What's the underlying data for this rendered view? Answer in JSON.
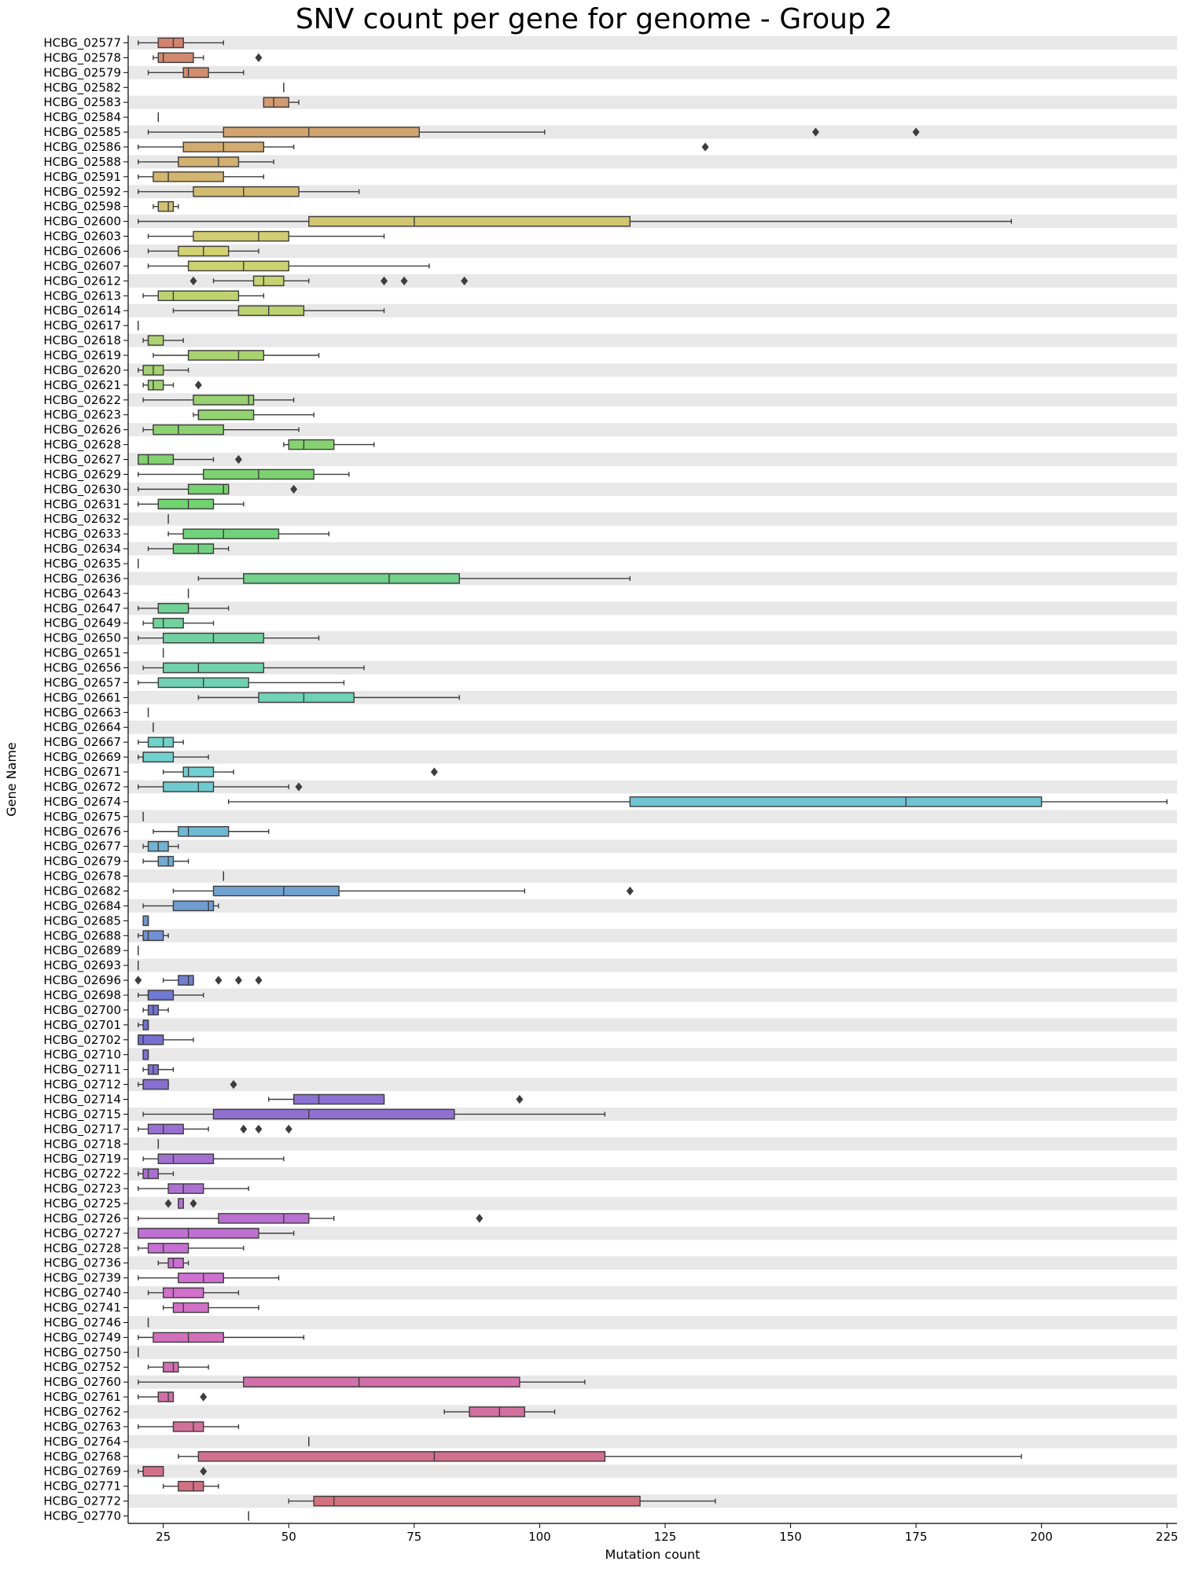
{
  "chart_data": {
    "type": "box",
    "orientation": "horizontal",
    "title": "SNV count per gene for genome - Group 2",
    "xlabel": "Mutation count",
    "ylabel": "Gene Name",
    "xlim": [
      18,
      227
    ],
    "xticks": [
      25,
      50,
      75,
      100,
      125,
      150,
      175,
      200,
      225
    ],
    "row_banding": true,
    "categories": [
      "HCBG_02577",
      "HCBG_02578",
      "HCBG_02579",
      "HCBG_02582",
      "HCBG_02583",
      "HCBG_02584",
      "HCBG_02585",
      "HCBG_02586",
      "HCBG_02588",
      "HCBG_02591",
      "HCBG_02592",
      "HCBG_02598",
      "HCBG_02600",
      "HCBG_02603",
      "HCBG_02606",
      "HCBG_02607",
      "HCBG_02612",
      "HCBG_02613",
      "HCBG_02614",
      "HCBG_02617",
      "HCBG_02618",
      "HCBG_02619",
      "HCBG_02620",
      "HCBG_02621",
      "HCBG_02622",
      "HCBG_02623",
      "HCBG_02626",
      "HCBG_02628",
      "HCBG_02627",
      "HCBG_02629",
      "HCBG_02630",
      "HCBG_02631",
      "HCBG_02632",
      "HCBG_02633",
      "HCBG_02634",
      "HCBG_02635",
      "HCBG_02636",
      "HCBG_02643",
      "HCBG_02647",
      "HCBG_02649",
      "HCBG_02650",
      "HCBG_02651",
      "HCBG_02656",
      "HCBG_02657",
      "HCBG_02661",
      "HCBG_02663",
      "HCBG_02664",
      "HCBG_02667",
      "HCBG_02669",
      "HCBG_02671",
      "HCBG_02672",
      "HCBG_02674",
      "HCBG_02675",
      "HCBG_02676",
      "HCBG_02677",
      "HCBG_02679",
      "HCBG_02678",
      "HCBG_02682",
      "HCBG_02684",
      "HCBG_02685",
      "HCBG_02688",
      "HCBG_02689",
      "HCBG_02693",
      "HCBG_02696",
      "HCBG_02698",
      "HCBG_02700",
      "HCBG_02701",
      "HCBG_02702",
      "HCBG_02710",
      "HCBG_02711",
      "HCBG_02712",
      "HCBG_02714",
      "HCBG_02715",
      "HCBG_02717",
      "HCBG_02718",
      "HCBG_02719",
      "HCBG_02722",
      "HCBG_02723",
      "HCBG_02725",
      "HCBG_02726",
      "HCBG_02727",
      "HCBG_02728",
      "HCBG_02736",
      "HCBG_02739",
      "HCBG_02740",
      "HCBG_02741",
      "HCBG_02746",
      "HCBG_02749",
      "HCBG_02750",
      "HCBG_02752",
      "HCBG_02760",
      "HCBG_02761",
      "HCBG_02762",
      "HCBG_02763",
      "HCBG_02764",
      "HCBG_02768",
      "HCBG_02769",
      "HCBG_02771",
      "HCBG_02772",
      "HCBG_02770"
    ],
    "boxes": [
      [
        20,
        24,
        27,
        29,
        37,
        []
      ],
      [
        23,
        24,
        25,
        31,
        33,
        [
          44
        ]
      ],
      [
        22,
        29,
        30,
        34,
        41,
        []
      ],
      [
        49,
        49,
        49,
        49,
        49,
        []
      ],
      [
        45,
        45,
        47,
        50,
        52,
        []
      ],
      [
        24,
        24,
        24,
        24,
        24,
        []
      ],
      [
        22,
        37,
        54,
        76,
        101,
        [
          155,
          175
        ]
      ],
      [
        20,
        29,
        37,
        45,
        51,
        [
          133
        ]
      ],
      [
        20,
        28,
        36,
        40,
        47,
        []
      ],
      [
        20,
        23,
        26,
        37,
        45,
        []
      ],
      [
        20,
        31,
        41,
        52,
        64,
        []
      ],
      [
        23,
        24,
        26,
        27,
        28,
        []
      ],
      [
        20,
        54,
        75,
        118,
        194,
        []
      ],
      [
        22,
        31,
        44,
        50,
        69,
        []
      ],
      [
        22,
        28,
        33,
        38,
        44,
        []
      ],
      [
        22,
        30,
        41,
        50,
        78,
        []
      ],
      [
        35,
        43,
        45,
        49,
        54,
        [
          31,
          69,
          73,
          85
        ]
      ],
      [
        21,
        24,
        27,
        40,
        45,
        []
      ],
      [
        27,
        40,
        46,
        53,
        69,
        []
      ],
      [
        20,
        20,
        20,
        20,
        20,
        []
      ],
      [
        21,
        22,
        22,
        25,
        29,
        []
      ],
      [
        23,
        30,
        40,
        45,
        56,
        []
      ],
      [
        20,
        21,
        23,
        25,
        30,
        []
      ],
      [
        21,
        22,
        23,
        25,
        27,
        [
          32
        ]
      ],
      [
        21,
        31,
        42,
        43,
        51,
        []
      ],
      [
        31,
        32,
        32,
        43,
        55,
        []
      ],
      [
        21,
        23,
        28,
        37,
        52,
        []
      ],
      [
        49,
        50,
        53,
        59,
        67,
        []
      ],
      [
        20,
        20,
        22,
        27,
        35,
        [
          40
        ]
      ],
      [
        20,
        33,
        44,
        55,
        62,
        []
      ],
      [
        20,
        30,
        37,
        38,
        38,
        [
          51
        ]
      ],
      [
        20,
        24,
        30,
        35,
        41,
        []
      ],
      [
        26,
        26,
        26,
        26,
        26,
        []
      ],
      [
        26,
        29,
        37,
        48,
        58,
        []
      ],
      [
        22,
        27,
        32,
        35,
        38,
        []
      ],
      [
        20,
        20,
        20,
        20,
        20,
        []
      ],
      [
        32,
        41,
        70,
        84,
        118,
        []
      ],
      [
        30,
        30,
        30,
        30,
        30,
        []
      ],
      [
        20,
        24,
        30,
        30,
        38,
        []
      ],
      [
        21,
        23,
        25,
        29,
        35,
        []
      ],
      [
        20,
        25,
        35,
        45,
        56,
        []
      ],
      [
        25,
        25,
        25,
        25,
        25,
        []
      ],
      [
        21,
        25,
        32,
        45,
        65,
        []
      ],
      [
        20,
        24,
        33,
        42,
        61,
        []
      ],
      [
        32,
        44,
        53,
        63,
        84,
        []
      ],
      [
        22,
        22,
        22,
        22,
        22,
        []
      ],
      [
        23,
        23,
        23,
        23,
        23,
        []
      ],
      [
        20,
        22,
        25,
        27,
        29,
        []
      ],
      [
        20,
        21,
        21,
        27,
        34,
        []
      ],
      [
        25,
        29,
        30,
        35,
        39,
        [
          79
        ]
      ],
      [
        20,
        25,
        32,
        35,
        50,
        [
          52
        ]
      ],
      [
        38,
        118,
        173,
        200,
        225,
        []
      ],
      [
        21,
        21,
        21,
        21,
        21,
        []
      ],
      [
        23,
        28,
        30,
        38,
        46,
        []
      ],
      [
        21,
        22,
        24,
        26,
        28,
        []
      ],
      [
        21,
        24,
        26,
        27,
        30,
        []
      ],
      [
        37,
        37,
        37,
        37,
        37,
        []
      ],
      [
        27,
        35,
        49,
        60,
        97,
        [
          118
        ]
      ],
      [
        21,
        27,
        34,
        35,
        36,
        []
      ],
      [
        21,
        21,
        22,
        22,
        22,
        []
      ],
      [
        20,
        21,
        22,
        25,
        26,
        []
      ],
      [
        20,
        20,
        20,
        20,
        20,
        []
      ],
      [
        20,
        20,
        20,
        20,
        20,
        []
      ],
      [
        25,
        28,
        30,
        31,
        31,
        [
          20,
          36,
          40,
          44
        ]
      ],
      [
        20,
        22,
        22,
        27,
        33,
        []
      ],
      [
        21,
        22,
        23,
        24,
        26,
        []
      ],
      [
        20,
        21,
        22,
        22,
        22,
        []
      ],
      [
        20,
        20,
        21,
        25,
        31,
        []
      ],
      [
        21,
        21,
        21,
        22,
        22,
        []
      ],
      [
        21,
        22,
        23,
        24,
        27,
        []
      ],
      [
        20,
        21,
        21,
        26,
        26,
        [
          39
        ]
      ],
      [
        46,
        51,
        56,
        69,
        69,
        [
          96
        ]
      ],
      [
        21,
        35,
        54,
        83,
        113,
        []
      ],
      [
        20,
        22,
        25,
        29,
        34,
        [
          41,
          44,
          50
        ]
      ],
      [
        24,
        24,
        24,
        24,
        24,
        []
      ],
      [
        21,
        24,
        27,
        35,
        49,
        []
      ],
      [
        20,
        21,
        22,
        24,
        27,
        []
      ],
      [
        20,
        26,
        29,
        33,
        42,
        []
      ],
      [
        28,
        28,
        29,
        29,
        29,
        [
          26,
          31
        ]
      ],
      [
        20,
        36,
        49,
        54,
        59,
        [
          88
        ]
      ],
      [
        20,
        20,
        30,
        44,
        51,
        []
      ],
      [
        20,
        22,
        25,
        30,
        41,
        []
      ],
      [
        24,
        26,
        27,
        29,
        30,
        []
      ],
      [
        20,
        28,
        33,
        37,
        48,
        []
      ],
      [
        22,
        25,
        27,
        33,
        40,
        []
      ],
      [
        25,
        27,
        29,
        34,
        44,
        []
      ],
      [
        22,
        22,
        22,
        22,
        22,
        []
      ],
      [
        20,
        23,
        30,
        37,
        53,
        []
      ],
      [
        20,
        20,
        20,
        20,
        20,
        []
      ],
      [
        22,
        25,
        27,
        28,
        34,
        []
      ],
      [
        20,
        41,
        64,
        96,
        109,
        []
      ],
      [
        20,
        24,
        26,
        27,
        27,
        [
          33
        ]
      ],
      [
        81,
        86,
        92,
        97,
        103,
        []
      ],
      [
        20,
        27,
        31,
        33,
        40,
        []
      ],
      [
        54,
        54,
        54,
        54,
        54,
        []
      ],
      [
        28,
        32,
        79,
        113,
        196,
        []
      ],
      [
        20,
        21,
        21,
        25,
        25,
        [
          33
        ]
      ],
      [
        25,
        28,
        31,
        33,
        36,
        []
      ],
      [
        50,
        55,
        59,
        120,
        135,
        []
      ],
      [
        42,
        42,
        42,
        42,
        42,
        []
      ]
    ]
  }
}
